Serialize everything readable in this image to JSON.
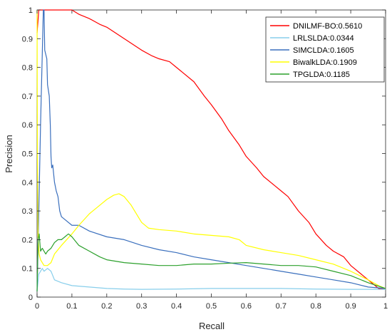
{
  "chart_data": {
    "type": "line",
    "xlabel": "Recall",
    "ylabel": "Precision",
    "xlim": [
      0,
      1
    ],
    "ylim": [
      0,
      1
    ],
    "x_ticks": [
      "0",
      "0.1",
      "0.2",
      "0.3",
      "0.4",
      "0.5",
      "0.6",
      "0.7",
      "0.8",
      "0.9",
      "1"
    ],
    "y_ticks": [
      "0",
      "0.1",
      "0.2",
      "0.3",
      "0.4",
      "0.5",
      "0.6",
      "0.7",
      "0.8",
      "0.9",
      "1"
    ],
    "grid": false,
    "legend_position": "top-right",
    "series": [
      {
        "name": "DNILMF-BO:0.5610",
        "color": "#ff0000",
        "points": [
          [
            0,
            0.92
          ],
          [
            0.005,
            1.0
          ],
          [
            0.05,
            1.0
          ],
          [
            0.1,
            1.0
          ],
          [
            0.12,
            0.985
          ],
          [
            0.15,
            0.97
          ],
          [
            0.18,
            0.95
          ],
          [
            0.2,
            0.94
          ],
          [
            0.25,
            0.9
          ],
          [
            0.3,
            0.86
          ],
          [
            0.33,
            0.84
          ],
          [
            0.35,
            0.83
          ],
          [
            0.38,
            0.82
          ],
          [
            0.4,
            0.8
          ],
          [
            0.45,
            0.75
          ],
          [
            0.48,
            0.7
          ],
          [
            0.5,
            0.67
          ],
          [
            0.53,
            0.62
          ],
          [
            0.55,
            0.58
          ],
          [
            0.58,
            0.53
          ],
          [
            0.6,
            0.49
          ],
          [
            0.63,
            0.45
          ],
          [
            0.65,
            0.42
          ],
          [
            0.68,
            0.39
          ],
          [
            0.7,
            0.37
          ],
          [
            0.72,
            0.35
          ],
          [
            0.75,
            0.3
          ],
          [
            0.78,
            0.26
          ],
          [
            0.8,
            0.22
          ],
          [
            0.83,
            0.18
          ],
          [
            0.85,
            0.16
          ],
          [
            0.88,
            0.14
          ],
          [
            0.9,
            0.11
          ],
          [
            0.93,
            0.08
          ],
          [
            0.96,
            0.05
          ],
          [
            0.98,
            0.03
          ],
          [
            1.0,
            0.03
          ]
        ]
      },
      {
        "name": "LRLSLDA:0.0344",
        "color": "#87ceeb",
        "points": [
          [
            0,
            0.02
          ],
          [
            0.005,
            0.08
          ],
          [
            0.01,
            0.09
          ],
          [
            0.015,
            0.1
          ],
          [
            0.02,
            0.09
          ],
          [
            0.03,
            0.1
          ],
          [
            0.04,
            0.09
          ],
          [
            0.05,
            0.06
          ],
          [
            0.07,
            0.05
          ],
          [
            0.1,
            0.04
          ],
          [
            0.15,
            0.035
          ],
          [
            0.2,
            0.03
          ],
          [
            0.25,
            0.028
          ],
          [
            0.3,
            0.027
          ],
          [
            0.4,
            0.028
          ],
          [
            0.5,
            0.03
          ],
          [
            0.6,
            0.03
          ],
          [
            0.7,
            0.03
          ],
          [
            0.8,
            0.028
          ],
          [
            0.9,
            0.027
          ],
          [
            1.0,
            0.027
          ]
        ]
      },
      {
        "name": "SIMCLDA:0.1605",
        "color": "#3a6fbd",
        "points": [
          [
            0,
            0.02
          ],
          [
            0.005,
            0.3
          ],
          [
            0.01,
            0.6
          ],
          [
            0.015,
            0.85
          ],
          [
            0.018,
            1.0
          ],
          [
            0.02,
            1.0
          ],
          [
            0.022,
            0.86
          ],
          [
            0.028,
            0.83
          ],
          [
            0.03,
            0.74
          ],
          [
            0.035,
            0.7
          ],
          [
            0.038,
            0.6
          ],
          [
            0.04,
            0.49
          ],
          [
            0.042,
            0.45
          ],
          [
            0.045,
            0.46
          ],
          [
            0.05,
            0.4
          ],
          [
            0.055,
            0.37
          ],
          [
            0.06,
            0.35
          ],
          [
            0.065,
            0.3
          ],
          [
            0.07,
            0.28
          ],
          [
            0.08,
            0.27
          ],
          [
            0.1,
            0.25
          ],
          [
            0.12,
            0.25
          ],
          [
            0.15,
            0.23
          ],
          [
            0.2,
            0.21
          ],
          [
            0.25,
            0.2
          ],
          [
            0.3,
            0.18
          ],
          [
            0.35,
            0.165
          ],
          [
            0.4,
            0.155
          ],
          [
            0.45,
            0.14
          ],
          [
            0.5,
            0.13
          ],
          [
            0.55,
            0.12
          ],
          [
            0.6,
            0.11
          ],
          [
            0.65,
            0.1
          ],
          [
            0.7,
            0.09
          ],
          [
            0.75,
            0.08
          ],
          [
            0.8,
            0.07
          ],
          [
            0.85,
            0.06
          ],
          [
            0.9,
            0.05
          ],
          [
            0.95,
            0.035
          ],
          [
            1.0,
            0.03
          ]
        ]
      },
      {
        "name": "BiwalkLDA:0.1909",
        "color": "#ffff00",
        "points": [
          [
            0,
            1.0
          ],
          [
            0.001,
            0.5
          ],
          [
            0.003,
            0.2
          ],
          [
            0.006,
            0.15
          ],
          [
            0.01,
            0.13
          ],
          [
            0.015,
            0.12
          ],
          [
            0.02,
            0.11
          ],
          [
            0.03,
            0.11
          ],
          [
            0.04,
            0.12
          ],
          [
            0.05,
            0.15
          ],
          [
            0.07,
            0.18
          ],
          [
            0.1,
            0.22
          ],
          [
            0.12,
            0.25
          ],
          [
            0.15,
            0.29
          ],
          [
            0.18,
            0.32
          ],
          [
            0.2,
            0.34
          ],
          [
            0.22,
            0.355
          ],
          [
            0.235,
            0.36
          ],
          [
            0.25,
            0.35
          ],
          [
            0.27,
            0.32
          ],
          [
            0.29,
            0.28
          ],
          [
            0.3,
            0.26
          ],
          [
            0.32,
            0.24
          ],
          [
            0.35,
            0.235
          ],
          [
            0.4,
            0.23
          ],
          [
            0.45,
            0.22
          ],
          [
            0.5,
            0.215
          ],
          [
            0.55,
            0.21
          ],
          [
            0.58,
            0.2
          ],
          [
            0.6,
            0.18
          ],
          [
            0.65,
            0.165
          ],
          [
            0.7,
            0.155
          ],
          [
            0.75,
            0.145
          ],
          [
            0.8,
            0.13
          ],
          [
            0.85,
            0.115
          ],
          [
            0.9,
            0.09
          ],
          [
            0.95,
            0.06
          ],
          [
            0.98,
            0.04
          ],
          [
            1.0,
            0.03
          ]
        ]
      },
      {
        "name": "TPGLDA:0.1185",
        "color": "#2ca02c",
        "points": [
          [
            0,
            0.02
          ],
          [
            0.003,
            0.2
          ],
          [
            0.006,
            0.22
          ],
          [
            0.01,
            0.16
          ],
          [
            0.015,
            0.17
          ],
          [
            0.02,
            0.16
          ],
          [
            0.025,
            0.15
          ],
          [
            0.03,
            0.16
          ],
          [
            0.04,
            0.17
          ],
          [
            0.05,
            0.19
          ],
          [
            0.06,
            0.2
          ],
          [
            0.07,
            0.2
          ],
          [
            0.08,
            0.21
          ],
          [
            0.09,
            0.22
          ],
          [
            0.1,
            0.21
          ],
          [
            0.12,
            0.18
          ],
          [
            0.15,
            0.16
          ],
          [
            0.18,
            0.14
          ],
          [
            0.2,
            0.13
          ],
          [
            0.25,
            0.12
          ],
          [
            0.3,
            0.115
          ],
          [
            0.35,
            0.11
          ],
          [
            0.4,
            0.11
          ],
          [
            0.45,
            0.115
          ],
          [
            0.5,
            0.115
          ],
          [
            0.55,
            0.118
          ],
          [
            0.6,
            0.12
          ],
          [
            0.65,
            0.115
          ],
          [
            0.7,
            0.11
          ],
          [
            0.75,
            0.11
          ],
          [
            0.8,
            0.105
          ],
          [
            0.85,
            0.09
          ],
          [
            0.9,
            0.075
          ],
          [
            0.95,
            0.05
          ],
          [
            1.0,
            0.03
          ]
        ]
      }
    ]
  }
}
